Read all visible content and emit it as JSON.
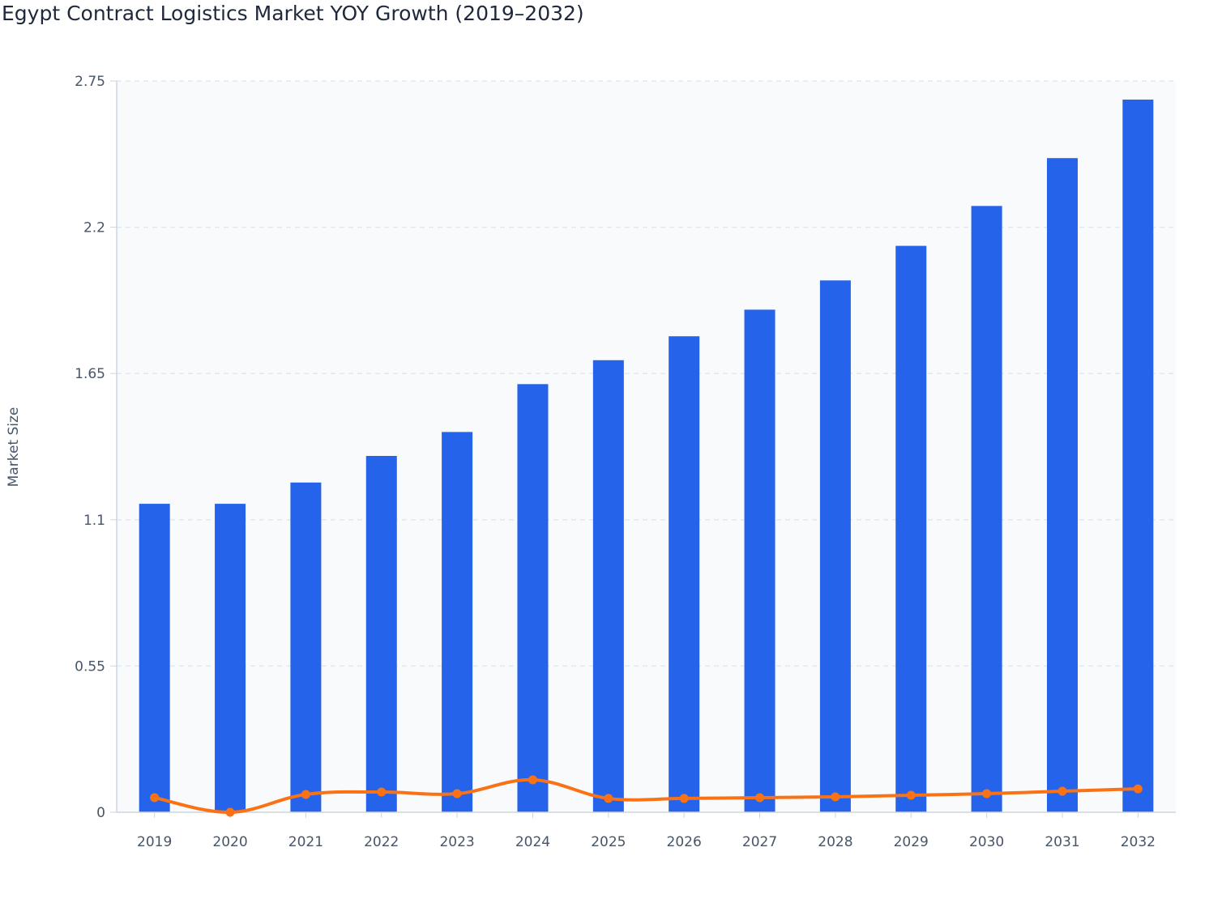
{
  "chart_data": {
    "type": "bar",
    "title": "Egypt Contract Logistics Market YOY Growth (2019–2032)",
    "xlabel": "",
    "ylabel": "Market Size",
    "ylim": [
      0,
      2.75
    ],
    "yticks": [
      "0",
      "0.55",
      "1.1",
      "1.65",
      "2.2",
      "2.75"
    ],
    "ytick_values": [
      0,
      0.55,
      1.1,
      1.65,
      2.2,
      2.75
    ],
    "grid": true,
    "categories": [
      "2019",
      "2020",
      "2021",
      "2022",
      "2023",
      "2024",
      "2025",
      "2026",
      "2027",
      "2028",
      "2029",
      "2030",
      "2031",
      "2032"
    ],
    "series": [
      {
        "type": "bar",
        "color": "#2563eb",
        "values": [
          1.16,
          1.16,
          1.24,
          1.34,
          1.43,
          1.61,
          1.7,
          1.79,
          1.89,
          2.0,
          2.13,
          2.28,
          2.46,
          2.68
        ]
      },
      {
        "type": "line",
        "color": "#f97316",
        "values": [
          0.055,
          0.0,
          0.067,
          0.076,
          0.07,
          0.122,
          0.052,
          0.052,
          0.055,
          0.058,
          0.064,
          0.07,
          0.079,
          0.088
        ]
      }
    ]
  }
}
